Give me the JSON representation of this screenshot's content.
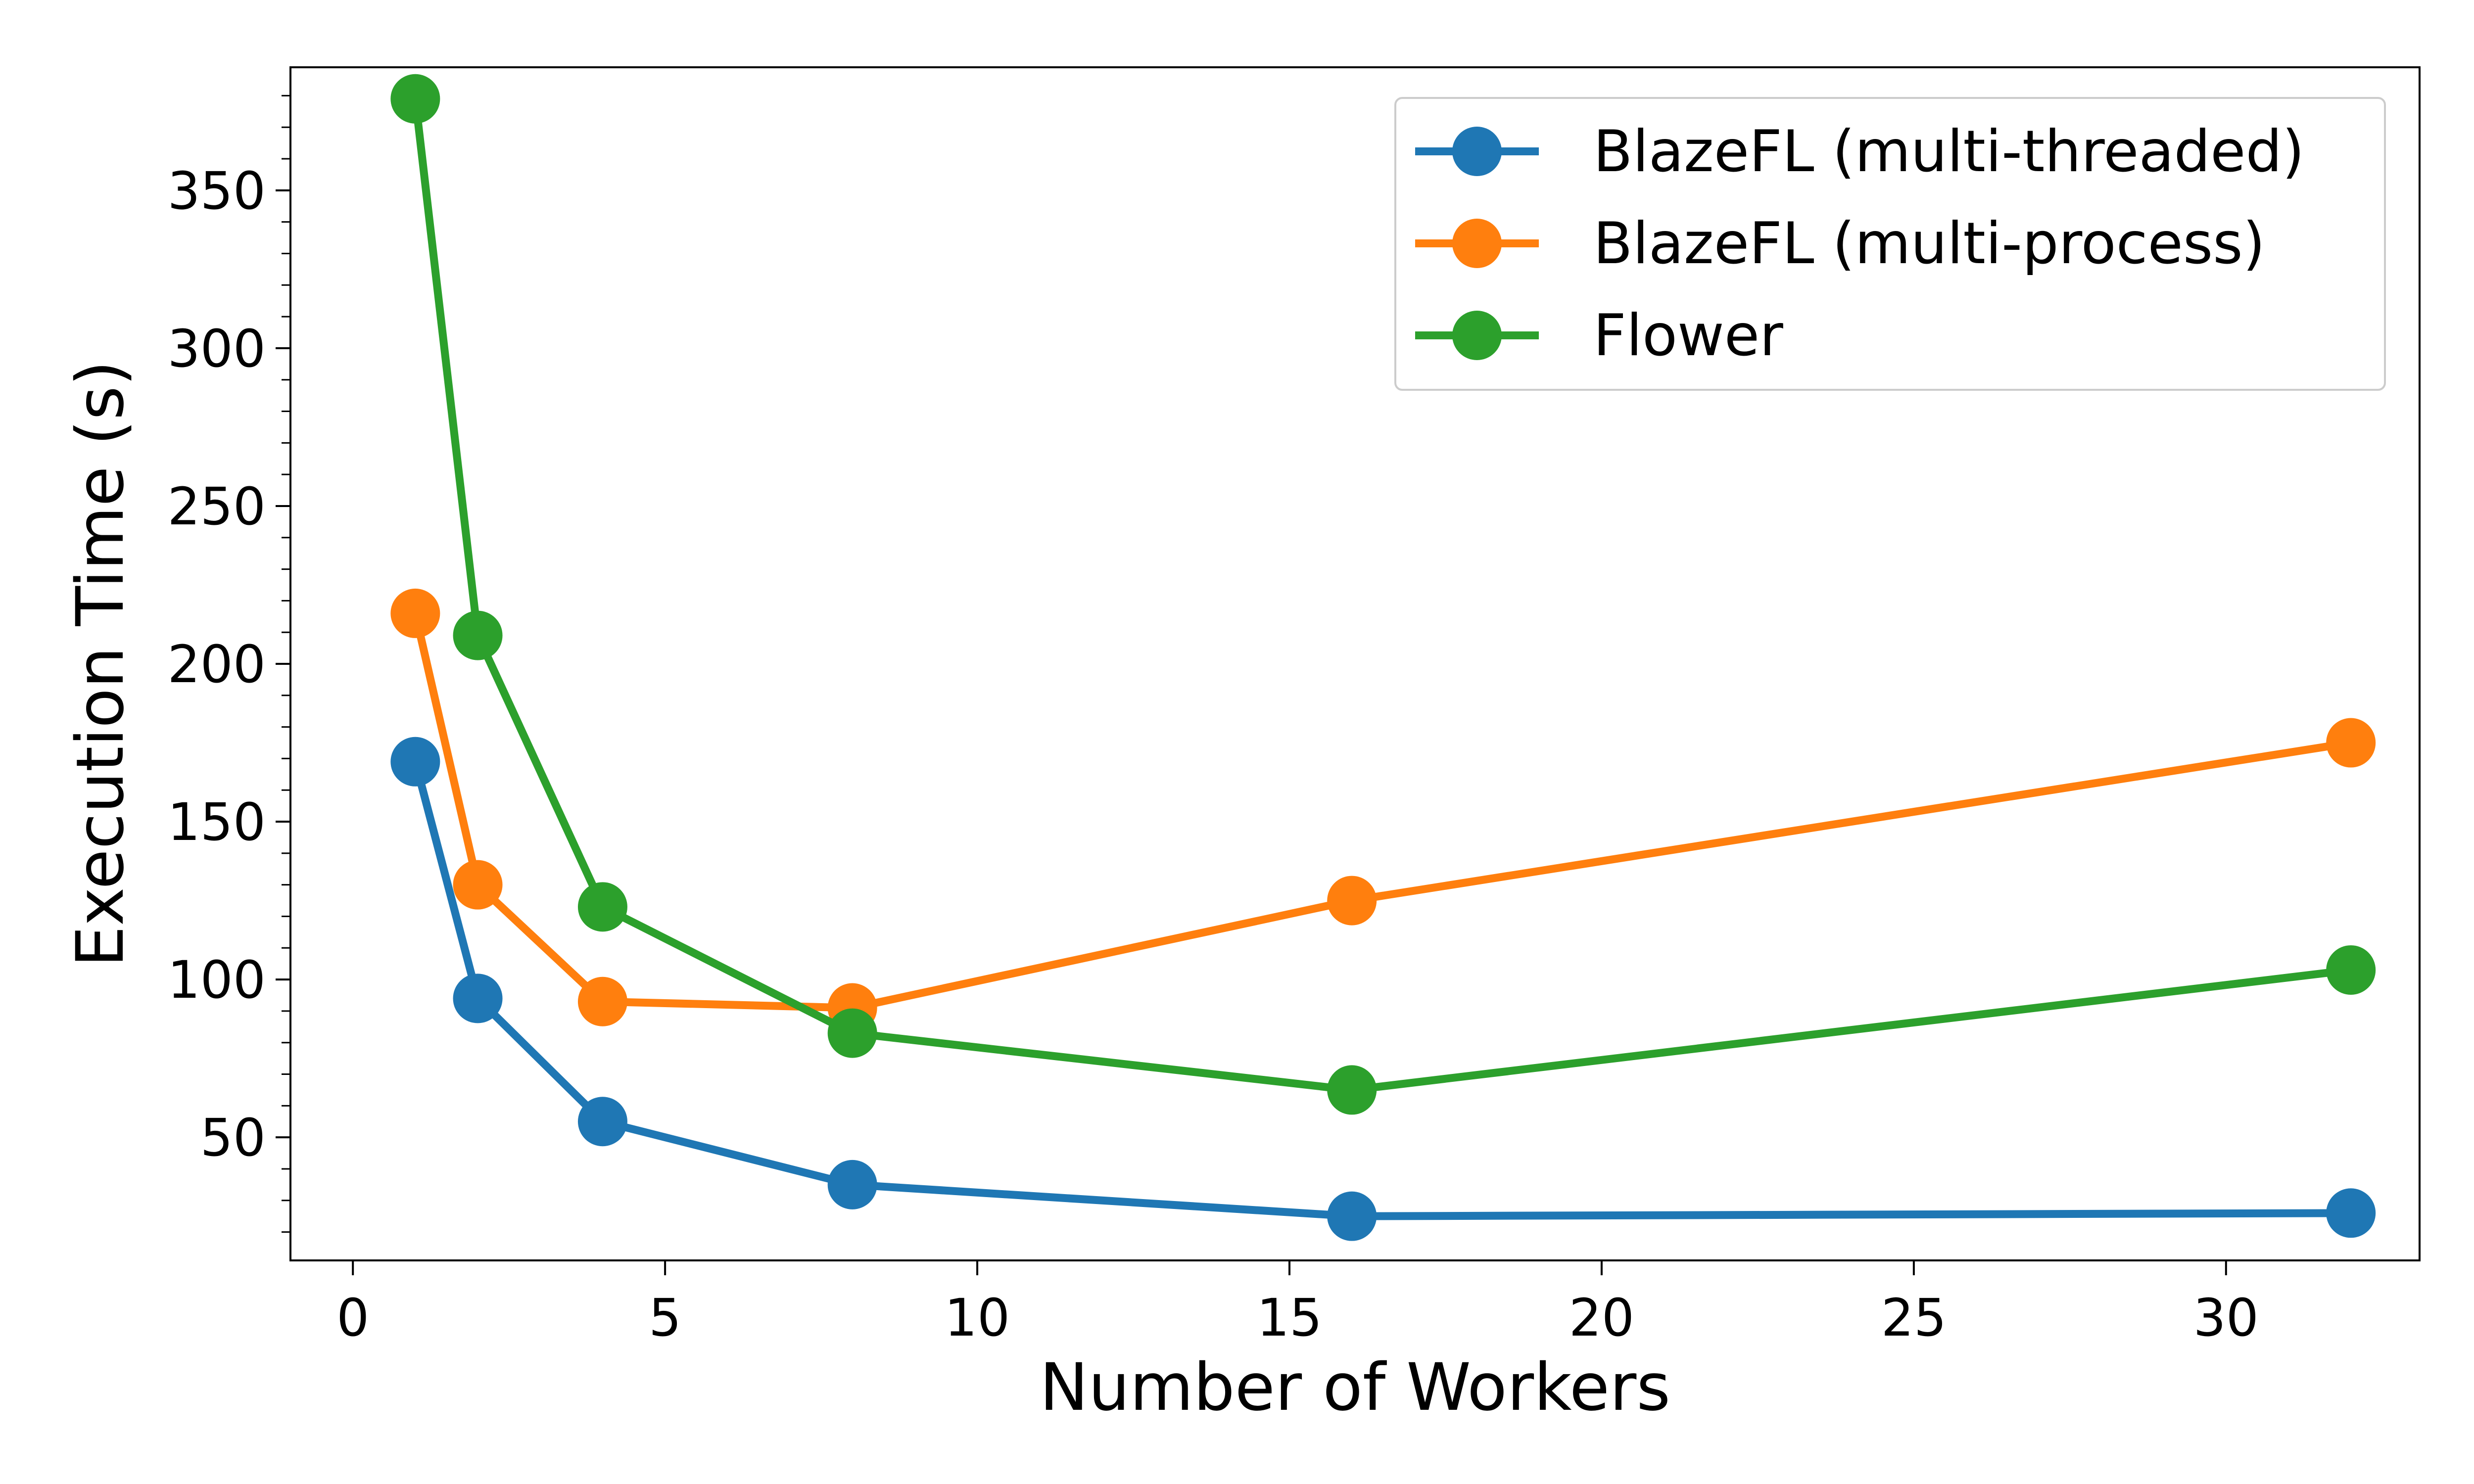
{
  "chart_data": {
    "type": "line",
    "title": "",
    "xlabel": "Number of Workers",
    "ylabel": "Execution Time (s)",
    "xlim": [
      -1,
      33.1
    ],
    "ylim": [
      11,
      389
    ],
    "xticks": [
      0,
      5,
      10,
      15,
      20,
      25,
      30
    ],
    "yticks": [
      50,
      100,
      150,
      200,
      250,
      300,
      350
    ],
    "grid": false,
    "legend_position": "top-right",
    "x": [
      1,
      2,
      4,
      8,
      16,
      32
    ],
    "series": [
      {
        "name": "BlazeFL (multi-threaded)",
        "color": "#1f77b4",
        "values": [
          169,
          94,
          55,
          35,
          25,
          26
        ]
      },
      {
        "name": "BlazeFL (multi-process)",
        "color": "#ff7f0e",
        "values": [
          216,
          130,
          93,
          91,
          125,
          175
        ]
      },
      {
        "name": "Flower",
        "color": "#2ca02c",
        "values": [
          379,
          209,
          123,
          83,
          65,
          103
        ]
      }
    ]
  }
}
